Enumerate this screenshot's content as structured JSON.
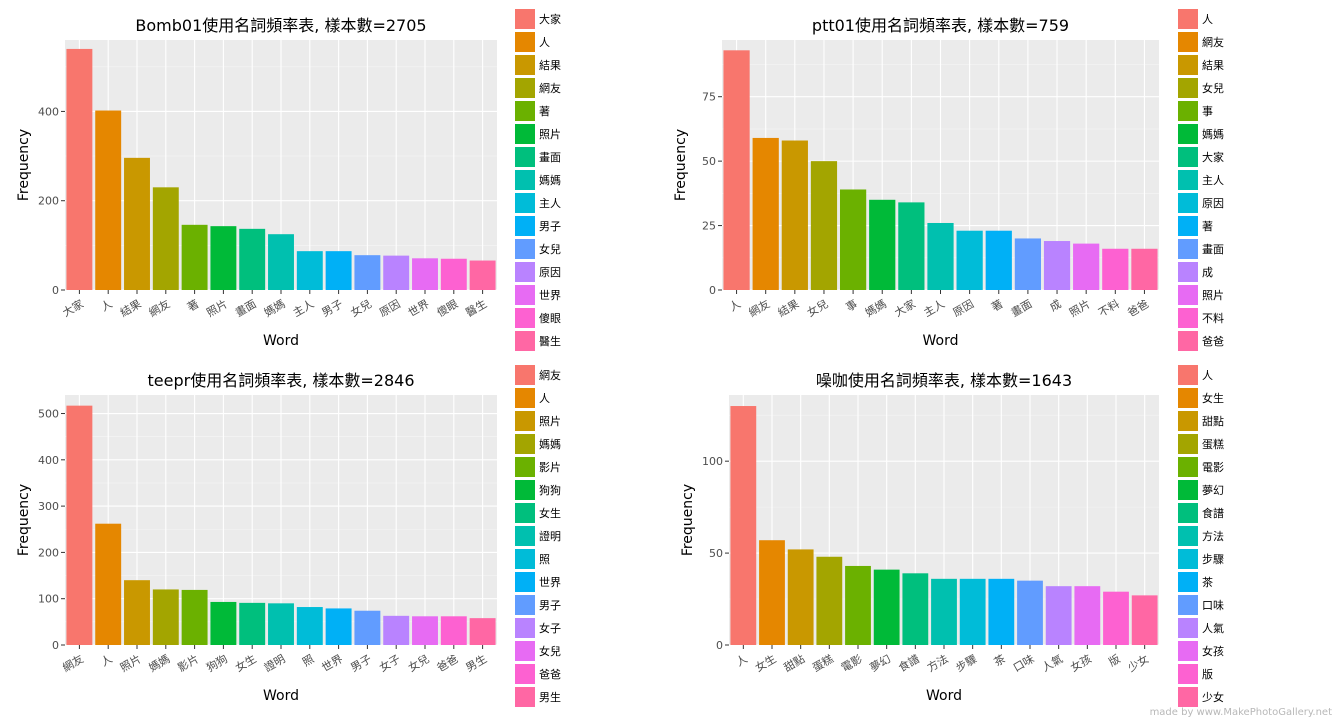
{
  "colors": {
    "panel_bg": "#EBEBEB",
    "grid_major": "#FFFFFF",
    "palette": [
      "#F8766D",
      "#E58700",
      "#C99800",
      "#A3A500",
      "#6BB100",
      "#00BA38",
      "#00BF7D",
      "#00C0AF",
      "#00BCD8",
      "#00B0F6",
      "#619CFF",
      "#B983FF",
      "#E76BF3",
      "#FD61D1",
      "#FF67A4"
    ]
  },
  "footer": "made by www.MakePhotoGallery.net",
  "chart_data": [
    {
      "type": "bar",
      "title": "Bomb01使用名詞頻率表, 樣本數=2705",
      "xlabel": "Word",
      "ylabel": "Frequency",
      "categories": [
        "大家",
        "人",
        "結果",
        "網友",
        "著",
        "照片",
        "畫面",
        "媽媽",
        "主人",
        "男子",
        "女兒",
        "原因",
        "世界",
        "傻眼",
        "醫生"
      ],
      "values": [
        540,
        402,
        296,
        230,
        146,
        143,
        137,
        125,
        87,
        87,
        78,
        77,
        71,
        70,
        66
      ],
      "ylim": [
        0,
        560
      ],
      "yticks": [
        0,
        200,
        400
      ],
      "legend": [
        "大家",
        "人",
        "結果",
        "網友",
        "著",
        "照片",
        "畫面",
        "媽媽",
        "主人",
        "男子",
        "女兒",
        "原因",
        "世界",
        "傻眼",
        "醫生"
      ],
      "legend_position": "right",
      "grid": true
    },
    {
      "type": "bar",
      "title": "ptt01使用名詞頻率表, 樣本數=759",
      "xlabel": "Word",
      "ylabel": "Frequency",
      "categories": [
        "人",
        "網友",
        "結果",
        "女兒",
        "事",
        "媽媽",
        "大家",
        "主人",
        "原因",
        "著",
        "畫面",
        "成",
        "照片",
        "不料",
        "爸爸"
      ],
      "values": [
        93,
        59,
        58,
        50,
        39,
        35,
        34,
        26,
        23,
        23,
        20,
        19,
        18,
        16,
        16
      ],
      "ylim": [
        0,
        97
      ],
      "yticks": [
        0,
        25,
        50,
        75
      ],
      "legend": [
        "人",
        "網友",
        "結果",
        "女兒",
        "事",
        "媽媽",
        "大家",
        "主人",
        "原因",
        "著",
        "畫面",
        "成",
        "照片",
        "不料",
        "爸爸"
      ],
      "legend_position": "right",
      "grid": true
    },
    {
      "type": "bar",
      "title": "teepr使用名詞頻率表, 樣本數=2846",
      "xlabel": "Word",
      "ylabel": "Frequency",
      "categories": [
        "網友",
        "人",
        "照片",
        "媽媽",
        "影片",
        "狗狗",
        "女生",
        "證明",
        "照",
        "世界",
        "男子",
        "女子",
        "女兒",
        "爸爸",
        "男生"
      ],
      "values": [
        517,
        262,
        140,
        120,
        119,
        93,
        91,
        90,
        82,
        79,
        74,
        63,
        62,
        62,
        58
      ],
      "ylim": [
        0,
        540
      ],
      "yticks": [
        0,
        100,
        200,
        300,
        400,
        500
      ],
      "legend": [
        "網友",
        "人",
        "照片",
        "媽媽",
        "影片",
        "狗狗",
        "女生",
        "證明",
        "照",
        "世界",
        "男子",
        "女子",
        "女兒",
        "爸爸",
        "男生"
      ],
      "legend_position": "right",
      "grid": true
    },
    {
      "type": "bar",
      "title": "噪咖使用名詞頻率表, 樣本數=1643",
      "xlabel": "Word",
      "ylabel": "Frequency",
      "categories": [
        "人",
        "女生",
        "甜點",
        "蛋糕",
        "電影",
        "夢幻",
        "食譜",
        "方法",
        "步驟",
        "茶",
        "口味",
        "人氣",
        "女孩",
        "版",
        "少女"
      ],
      "values": [
        130,
        57,
        52,
        48,
        43,
        41,
        39,
        36,
        36,
        36,
        35,
        32,
        32,
        29,
        27
      ],
      "ylim": [
        0,
        136
      ],
      "yticks": [
        0,
        50,
        100
      ],
      "legend": [
        "人",
        "女生",
        "甜點",
        "蛋糕",
        "電影",
        "夢幻",
        "食譜",
        "方法",
        "步驟",
        "茶",
        "口味",
        "人氣",
        "女孩",
        "版",
        "少女"
      ],
      "legend_position": "right",
      "grid": true
    }
  ]
}
